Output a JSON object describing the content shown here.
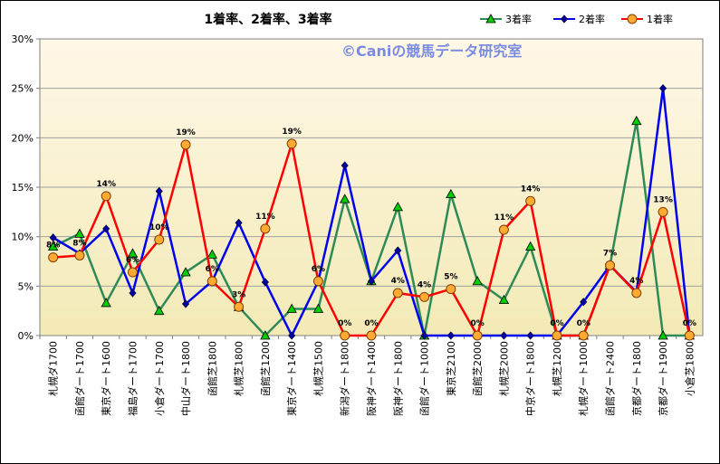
{
  "chart_data": {
    "type": "line",
    "title": "1着率、2着率、3着率",
    "watermark": "©Caniの競馬データ研究室",
    "ylim": [
      0,
      30
    ],
    "y_ticks": [
      "0%",
      "5%",
      "10%",
      "15%",
      "20%",
      "25%",
      "30%"
    ],
    "legend_position": "top-right",
    "categories": [
      "札幌ダ1700",
      "函館ダート1700",
      "東京ダート1600",
      "福島ダート1700",
      "小倉ダート1700",
      "中山ダート1800",
      "函館芝1800",
      "札幌芝1800",
      "函館芝1200",
      "東京ダート1400",
      "札幌芝1500",
      "新潟ダート1800",
      "阪神ダート1400",
      "阪神ダート1800",
      "函館ダート1000",
      "東京芝2100",
      "函館芝2000",
      "札幌芝2000",
      "中京ダート1800",
      "札幌芝1200",
      "札幌ダート1000",
      "函館ダート2400",
      "京都ダート1800",
      "京都ダート1900",
      "小倉芝1800"
    ],
    "series": [
      {
        "name": "3着率",
        "color": "#2e8b57",
        "marker": "triangle",
        "marker_fill": "#00cc00",
        "values": [
          9,
          10.3,
          3.3,
          8.3,
          2.5,
          6.4,
          8.2,
          2.9,
          0,
          2.7,
          2.7,
          13.8,
          5.5,
          13.0,
          0,
          14.3,
          5.5,
          3.6,
          9.0,
          0,
          0,
          7.1,
          21.7,
          0,
          0
        ]
      },
      {
        "name": "2着率",
        "color": "#0000ee",
        "marker": "diamond",
        "marker_fill": "#0000aa",
        "values": [
          9.9,
          8.3,
          10.8,
          4.3,
          14.6,
          3.2,
          5.5,
          11.4,
          5.4,
          0,
          5.5,
          17.2,
          5.5,
          8.6,
          0,
          0,
          0,
          0,
          0,
          0,
          3.4,
          7.1,
          4.4,
          25.0,
          0
        ]
      },
      {
        "name": "1着率",
        "color": "#ff0000",
        "marker": "circle",
        "marker_fill": "#ffaa33",
        "values": [
          7.9,
          8.1,
          14.1,
          6.4,
          9.7,
          19.3,
          5.5,
          2.9,
          10.8,
          19.4,
          5.5,
          0,
          0,
          4.3,
          3.9,
          4.7,
          0,
          10.7,
          13.6,
          0,
          0,
          7.1,
          4.3,
          12.5,
          0
        ],
        "data_labels": [
          "8%",
          "8%",
          "14%",
          "6%",
          "10%",
          "19%",
          "6%",
          "3%",
          "11%",
          "19%",
          "6%",
          "0%",
          "0%",
          "4%",
          "4%",
          "5%",
          "0%",
          "11%",
          "14%",
          "0%",
          "0%",
          "7%",
          "4%",
          "13%",
          "0%"
        ]
      }
    ]
  }
}
